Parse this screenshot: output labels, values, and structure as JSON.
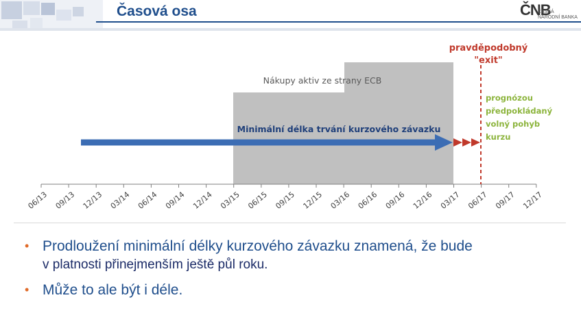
{
  "header": {
    "title": "Časová osa",
    "logo_main": "ČNB",
    "logo_sub": "ČESKÁ\nNÁRODNÍ BANKA",
    "accent": "#1f4e8c"
  },
  "chart_data": {
    "type": "timeline",
    "x_ticks": [
      "06/13",
      "09/13",
      "12/13",
      "03/14",
      "06/14",
      "09/14",
      "12/14",
      "03/15",
      "06/15",
      "09/15",
      "12/15",
      "03/16",
      "06/16",
      "09/16",
      "12/16",
      "03/17",
      "06/17",
      "09/17",
      "12/17"
    ],
    "asset_purchases": {
      "label": "Nákupy aktiv ze strany ECB",
      "segments": [
        {
          "start": "03/15",
          "end": "03/16",
          "level": "low"
        },
        {
          "start": "03/16",
          "end": "03/17",
          "level": "high"
        }
      ],
      "color": "#c0c0c0"
    },
    "commitment_arrow": {
      "label": "Minimální délka trvání kurzového závazku",
      "start": "09/13",
      "end": "03/17",
      "extension_end": "06/17",
      "color": "#3c6db4",
      "extension_color": "#c0392b"
    },
    "exit": {
      "label_line1": "pravděpodobný",
      "label_line2": "\"exit\"",
      "date": "06/17",
      "color": "#c0392b"
    },
    "forecast_note": {
      "lines": [
        "prognózou",
        "předpokládaný",
        "volný pohyb",
        "kurzu"
      ],
      "color": "#8cb43c"
    }
  },
  "bullets": [
    {
      "line1": "Prodloužení minimální délky kurzového závazku znamená, že bude",
      "line2": "v platnosti přinejmenším ještě půl roku."
    },
    {
      "line1": "Může to ale být i déle.",
      "line2": ""
    }
  ],
  "bullet_glyph": "•"
}
